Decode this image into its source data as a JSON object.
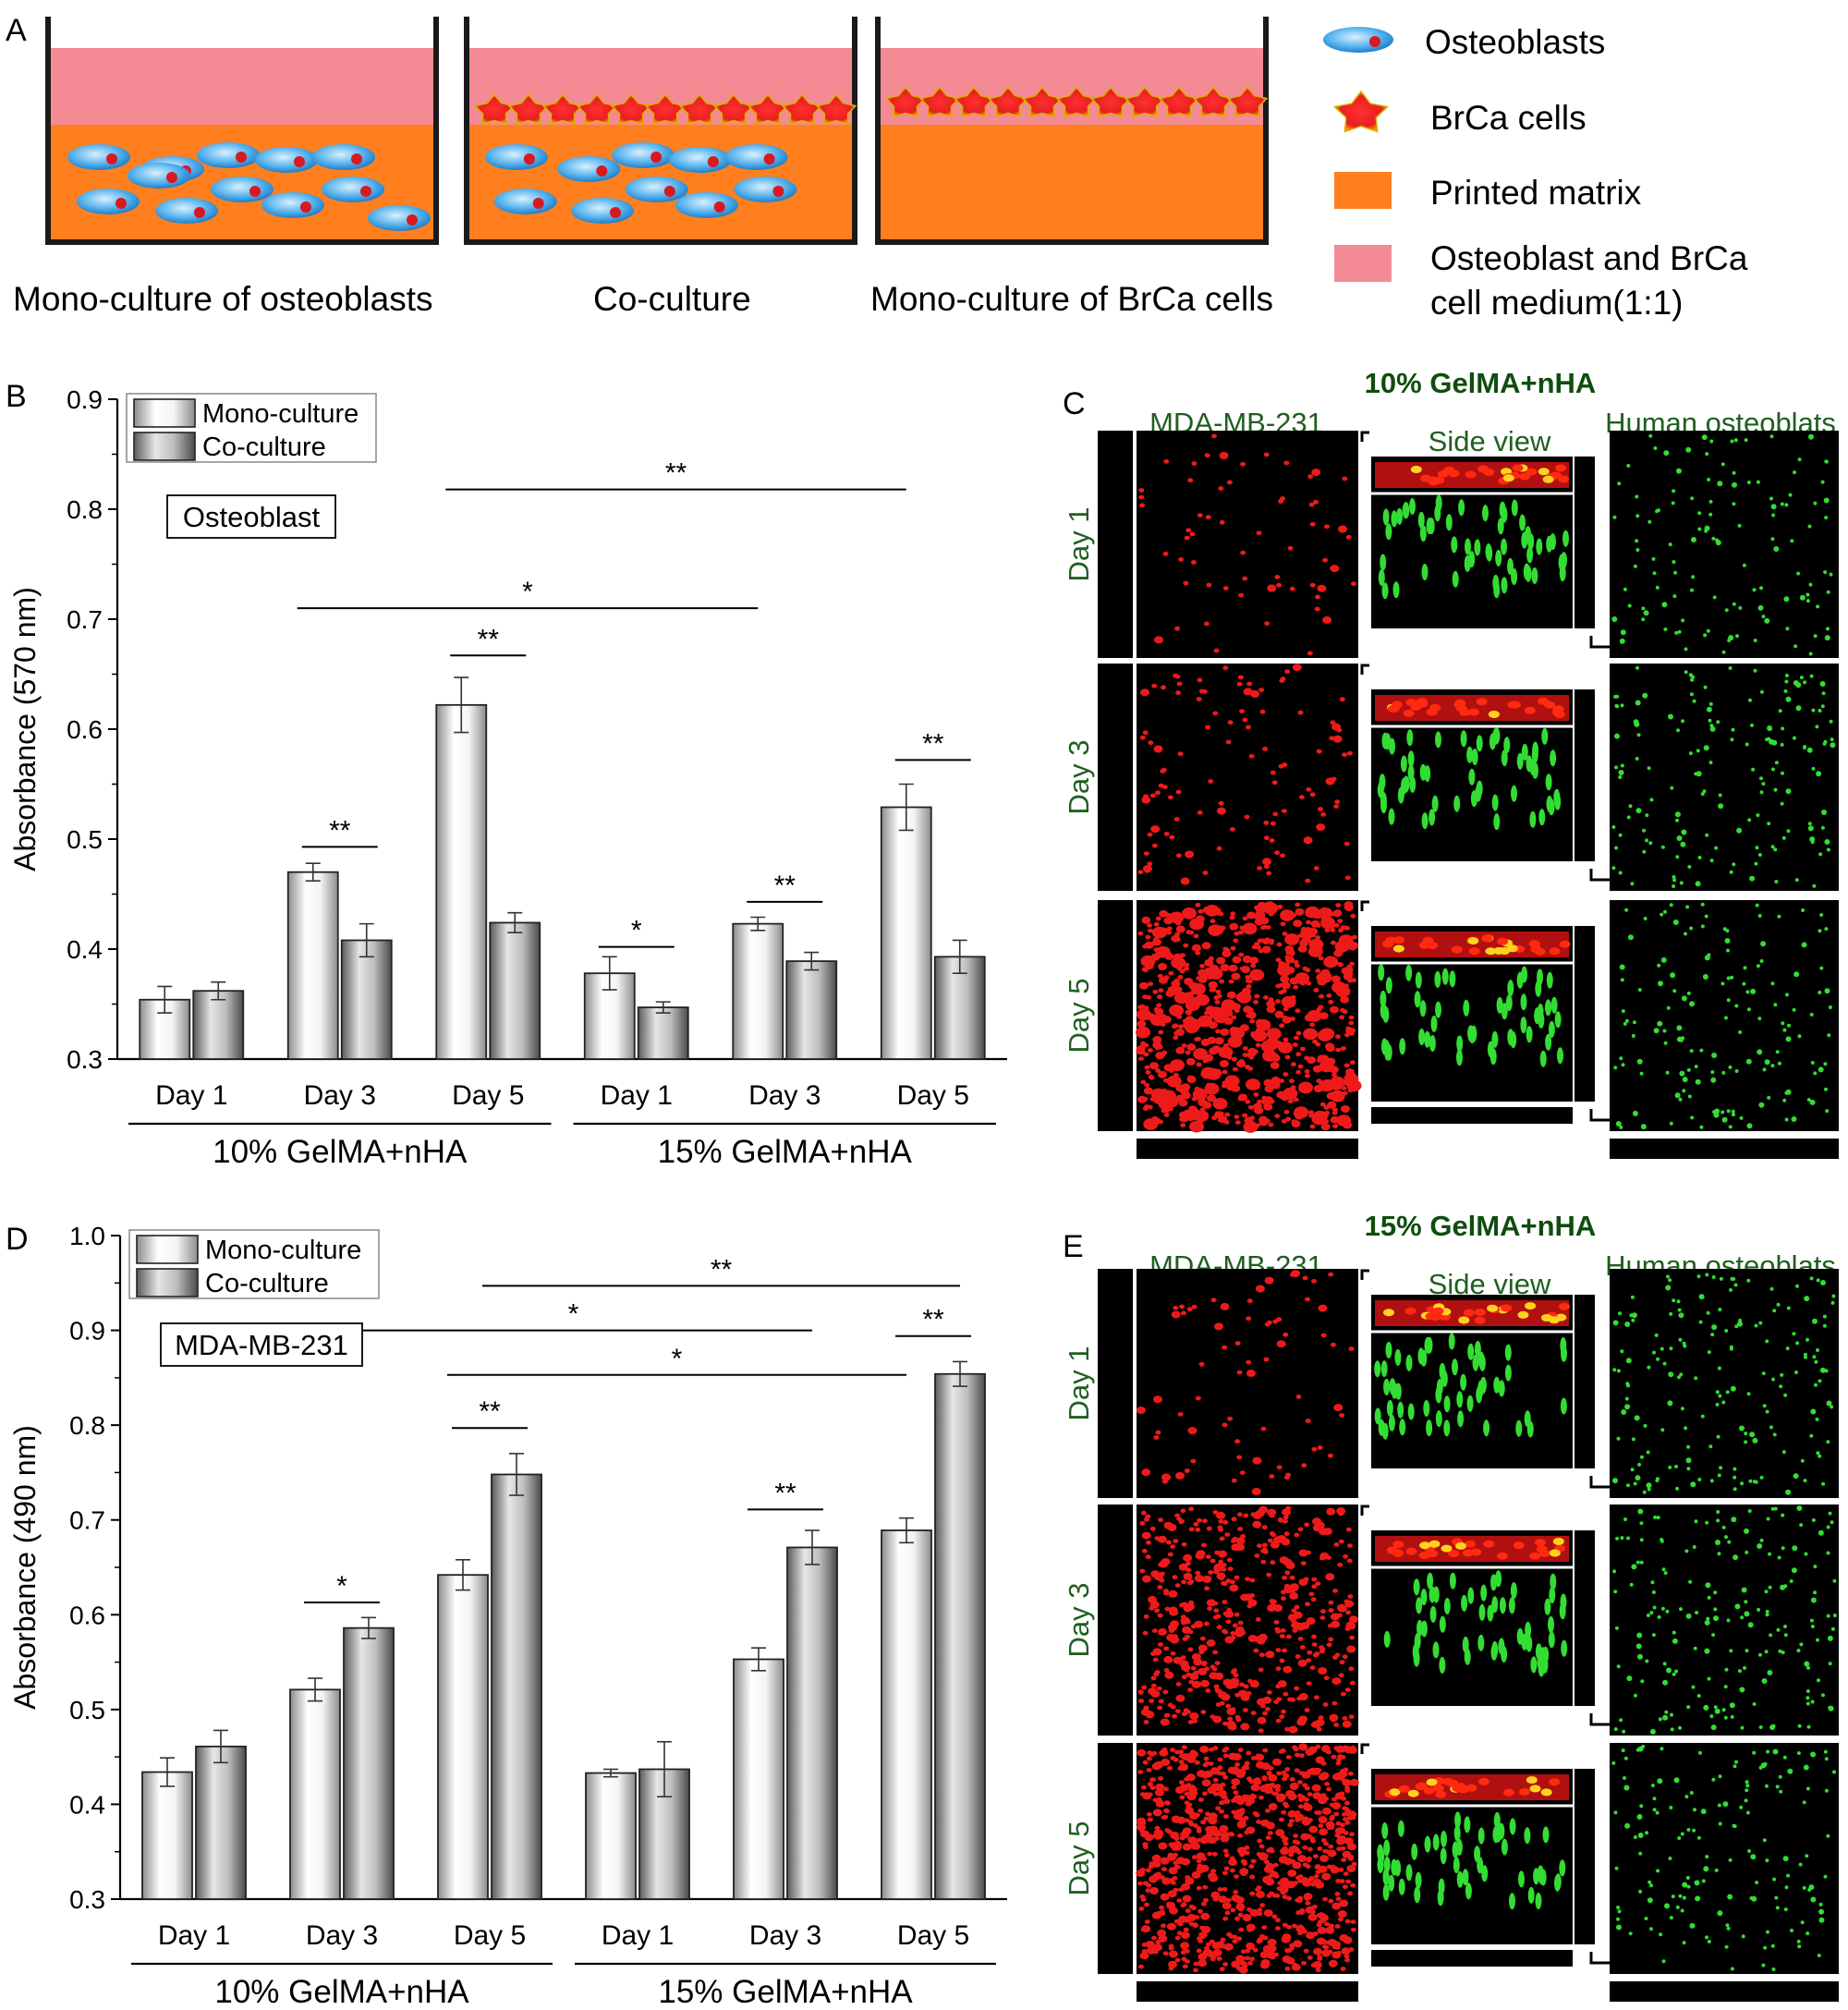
{
  "panel_a": {
    "letter": "A",
    "wells": [
      {
        "label": "Mono-culture of osteoblasts",
        "osteoblasts": true,
        "brca": false
      },
      {
        "label": "Co-culture",
        "osteoblasts": true,
        "brca": true
      },
      {
        "label": "Mono-culture of BrCa cells",
        "osteoblasts": false,
        "brca": true
      }
    ],
    "legend": [
      {
        "key": "osteoblast",
        "lines": [
          "Osteoblasts"
        ]
      },
      {
        "key": "brca",
        "lines": [
          "BrCa cells"
        ]
      },
      {
        "key": "matrix",
        "lines": [
          "Printed matrix"
        ]
      },
      {
        "key": "medium",
        "lines": [
          "Osteoblast and BrCa",
          "cell medium(1:1)"
        ]
      }
    ],
    "colors": {
      "matrix": "#ff7f1f",
      "medium": "#f48a93",
      "osteoblast": "#4aa9e8",
      "brca": "#e8202a",
      "wall": "#1a1a1a"
    }
  },
  "chart_data": [
    {
      "panel": "B",
      "type": "bar",
      "ylabel": "Absorbance (570 nm)",
      "ylim": [
        0.3,
        0.9
      ],
      "yticks": [
        "0.3",
        "0.4",
        "0.5",
        "0.6",
        "0.7",
        "0.8",
        "0.9"
      ],
      "categories": [
        "Day 1",
        "Day 3",
        "Day 5",
        "Day 1",
        "Day 3",
        "Day 5"
      ],
      "groups": [
        {
          "label": "10% GelMA+nHA",
          "from": 0,
          "to": 2
        },
        {
          "label": "15% GelMA+nHA",
          "from": 3,
          "to": 5
        }
      ],
      "series": [
        {
          "name": "Mono-culture",
          "values": [
            0.354,
            0.47,
            0.622,
            0.378,
            0.423,
            0.529
          ],
          "errors": [
            0.012,
            0.008,
            0.025,
            0.015,
            0.006,
            0.021
          ]
        },
        {
          "name": "Co-culture",
          "values": [
            0.362,
            0.408,
            0.424,
            0.347,
            0.389,
            0.393
          ],
          "errors": [
            0.008,
            0.015,
            0.009,
            0.005,
            0.008,
            0.015
          ]
        }
      ],
      "legend_position": "top-left",
      "annotation_box": "Osteoblast",
      "significance": [
        {
          "label": "**",
          "from": 1,
          "to": 1,
          "y": 0.493
        },
        {
          "label": "**",
          "from": 2,
          "to": 2,
          "y": 0.667
        },
        {
          "label": "*",
          "from": 3,
          "to": 3,
          "y": 0.402
        },
        {
          "label": "**",
          "from": 4,
          "to": 4,
          "y": 0.443
        },
        {
          "label": "**",
          "from": 5,
          "to": 5,
          "y": 0.572
        },
        {
          "label": "*",
          "from": 1,
          "to": 4,
          "span": "mono",
          "y": 0.71
        },
        {
          "label": "**",
          "from": 2,
          "to": 5,
          "span": "mono",
          "y": 0.818
        }
      ]
    },
    {
      "panel": "D",
      "type": "bar",
      "ylabel": "Absorbance (490 nm)",
      "ylim": [
        0.3,
        1.0
      ],
      "yticks": [
        "0.3",
        "0.4",
        "0.5",
        "0.6",
        "0.7",
        "0.8",
        "0.9",
        "1.0"
      ],
      "categories": [
        "Day 1",
        "Day 3",
        "Day 5",
        "Day 1",
        "Day 3",
        "Day 5"
      ],
      "groups": [
        {
          "label": "10% GelMA+nHA",
          "from": 0,
          "to": 2
        },
        {
          "label": "15% GelMA+nHA",
          "from": 3,
          "to": 5
        }
      ],
      "series": [
        {
          "name": "Mono-culture",
          "values": [
            0.434,
            0.521,
            0.642,
            0.433,
            0.553,
            0.689
          ],
          "errors": [
            0.015,
            0.012,
            0.016,
            0.004,
            0.012,
            0.013
          ]
        },
        {
          "name": "Co-culture",
          "values": [
            0.461,
            0.586,
            0.748,
            0.437,
            0.671,
            0.854
          ],
          "errors": [
            0.017,
            0.011,
            0.022,
            0.029,
            0.018,
            0.013
          ]
        }
      ],
      "legend_position": "top-left",
      "annotation_box": "MDA-MB-231",
      "significance": [
        {
          "label": "*",
          "from": 1,
          "to": 1,
          "y": 0.613
        },
        {
          "label": "**",
          "from": 2,
          "to": 2,
          "y": 0.797
        },
        {
          "label": "**",
          "from": 4,
          "to": 4,
          "y": 0.711
        },
        {
          "label": "**",
          "from": 5,
          "to": 5,
          "y": 0.894
        },
        {
          "label": "*",
          "from": 1,
          "to": 4,
          "span": "co",
          "y": 0.9
        },
        {
          "label": "*",
          "from": 2,
          "to": 5,
          "span": "mono",
          "y": 0.853
        },
        {
          "label": "**",
          "from": 2,
          "to": 5,
          "span": "co",
          "y": 0.947
        }
      ]
    }
  ],
  "panel_c": {
    "letter": "C",
    "title": "10% GelMA+nHA",
    "col_left": "MDA-MB-231",
    "col_mid": "Side view",
    "col_right": "Human osteoblats",
    "rows": [
      "Day 1",
      "Day 3",
      "Day 5"
    ],
    "red_density": [
      60,
      110,
      700
    ],
    "green_density": [
      120,
      160,
      150
    ]
  },
  "panel_e": {
    "letter": "E",
    "title": "15% GelMA+nHA",
    "col_left": "MDA-MB-231",
    "col_mid": "Side view",
    "col_right": "Human osteoblats",
    "rows": [
      "Day 1",
      "Day 3",
      "Day 5"
    ],
    "red_density": [
      70,
      500,
      900
    ],
    "green_density": [
      170,
      180,
      150
    ]
  },
  "panel_b_letter": "B",
  "panel_d_letter": "D",
  "colors": {
    "label_green": "#1f5f1f",
    "title_green": "#0f4d0f",
    "red_cells": "#ee1a1a",
    "green_cells": "#33dd33",
    "hot_cells": "#ffd21e"
  }
}
